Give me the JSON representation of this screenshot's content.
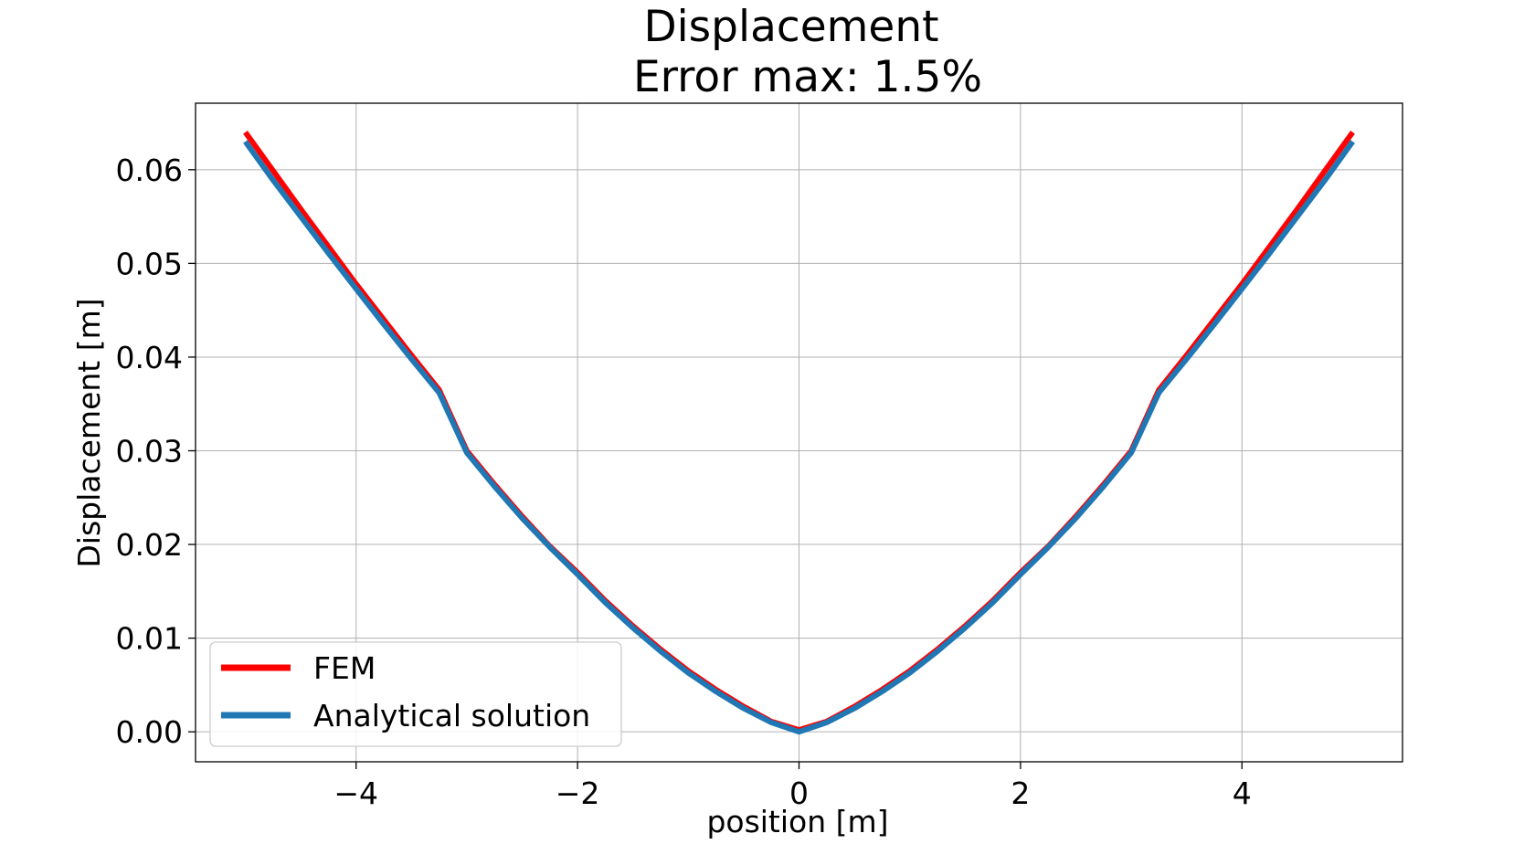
{
  "chart_data": {
    "type": "line",
    "title": "Displacement",
    "subtitle": "Error max: 1.5%",
    "xlabel": "position [m]",
    "ylabel": "Displacement [m]",
    "xlim": [
      -5.45,
      5.45
    ],
    "ylim": [
      -0.0032,
      0.0671
    ],
    "xticks": [
      -4,
      -2,
      0,
      2,
      4
    ],
    "xtick_labels": [
      "−4",
      "−2",
      "0",
      "2",
      "4"
    ],
    "yticks": [
      0.0,
      0.01,
      0.02,
      0.03,
      0.04,
      0.05,
      0.06
    ],
    "ytick_labels": [
      "0.00",
      "0.01",
      "0.02",
      "0.03",
      "0.04",
      "0.05",
      "0.06"
    ],
    "grid": true,
    "legend_position": "lower-left",
    "x": [
      -5,
      -4.75,
      -4.5,
      -4.25,
      -4,
      -3.75,
      -3.5,
      -3.25,
      -3,
      -2.75,
      -2.5,
      -2.25,
      -2,
      -1.75,
      -1.5,
      -1.25,
      -1,
      -0.75,
      -0.5,
      -0.25,
      0,
      0.25,
      0.5,
      0.75,
      1,
      1.25,
      1.5,
      1.75,
      2,
      2.25,
      2.5,
      2.75,
      3,
      3.25,
      3.5,
      3.75,
      4,
      4.25,
      4.5,
      4.75,
      5
    ],
    "series": [
      {
        "name": "FEM",
        "color": "#ff0000",
        "values": [
          0.064,
          0.0599,
          0.0558,
          0.0518,
          0.0478,
          0.044,
          0.0402,
          0.0365,
          0.03,
          0.0264,
          0.023,
          0.0198,
          0.017,
          0.014,
          0.0113,
          0.0088,
          0.0065,
          0.0045,
          0.0027,
          0.0011,
          0.0002,
          0.0011,
          0.0027,
          0.0045,
          0.0065,
          0.0088,
          0.0113,
          0.014,
          0.017,
          0.0198,
          0.023,
          0.0264,
          0.03,
          0.0365,
          0.0402,
          0.044,
          0.0478,
          0.0518,
          0.0558,
          0.0599,
          0.064
        ]
      },
      {
        "name": "Analytical solution",
        "color": "#1f77b4",
        "values": [
          0.063,
          0.0589,
          0.055,
          0.0511,
          0.0473,
          0.0435,
          0.0398,
          0.0362,
          0.0298,
          0.0262,
          0.0228,
          0.0197,
          0.0168,
          0.0138,
          0.0111,
          0.0086,
          0.0063,
          0.0043,
          0.0025,
          0.001,
          0.0,
          0.001,
          0.0025,
          0.0043,
          0.0063,
          0.0086,
          0.0111,
          0.0138,
          0.0168,
          0.0197,
          0.0228,
          0.0262,
          0.0298,
          0.0362,
          0.0398,
          0.0435,
          0.0473,
          0.0511,
          0.055,
          0.0589,
          0.063
        ]
      }
    ]
  }
}
